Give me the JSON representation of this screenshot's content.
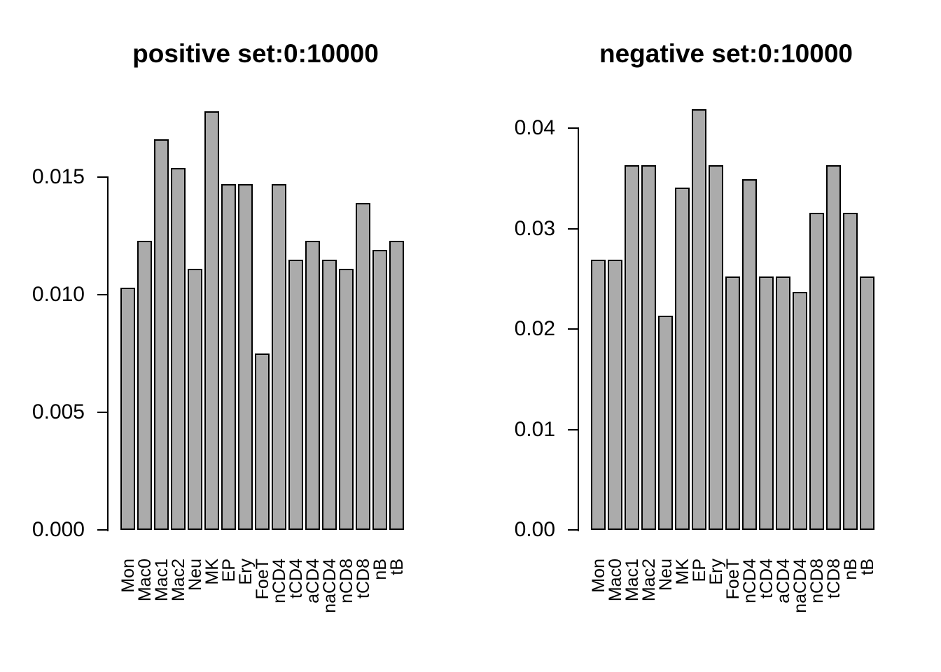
{
  "figure": {
    "background": "#ffffff",
    "bar_fill": "#ababab",
    "bar_border": "#000000",
    "axis_color": "#000000",
    "text_color": "#000000"
  },
  "chart_data": [
    {
      "type": "bar",
      "title": "positive set:0:10000",
      "categories": [
        "Mon",
        "Mac0",
        "Mac1",
        "Mac2",
        "Neu",
        "MK",
        "EP",
        "Ery",
        "FoeT",
        "nCD4",
        "tCD4",
        "aCD4",
        "naCD4",
        "nCD8",
        "tCD8",
        "nB",
        "tB"
      ],
      "values": [
        0.0103,
        0.0123,
        0.0166,
        0.0154,
        0.0111,
        0.0178,
        0.0147,
        0.0147,
        0.0075,
        0.0147,
        0.0115,
        0.0123,
        0.0115,
        0.0111,
        0.0139,
        0.0119,
        0.0123
      ],
      "xlabel": "",
      "ylabel": "",
      "ylim": [
        0,
        0.015
      ],
      "yticks": [
        {
          "value": 0,
          "label": "0.000"
        },
        {
          "value": 0.005,
          "label": "0.005"
        },
        {
          "value": 0.01,
          "label": "0.010"
        },
        {
          "value": 0.015,
          "label": "0.015"
        }
      ],
      "grid": false,
      "legend": "none"
    },
    {
      "type": "bar",
      "title": "negative set:0:10000",
      "categories": [
        "Mon",
        "Mac0",
        "Mac1",
        "Mac2",
        "Neu",
        "MK",
        "EP",
        "Ery",
        "FoeT",
        "nCD4",
        "tCD4",
        "aCD4",
        "naCD4",
        "nCD8",
        "tCD8",
        "nB",
        "tB"
      ],
      "values": [
        0.0269,
        0.0269,
        0.0363,
        0.0363,
        0.0213,
        0.0341,
        0.0419,
        0.0363,
        0.0252,
        0.0349,
        0.0252,
        0.0252,
        0.0237,
        0.0316,
        0.0363,
        0.0316,
        0.0252
      ],
      "xlabel": "",
      "ylabel": "",
      "ylim": [
        0,
        0.04
      ],
      "yticks": [
        {
          "value": 0,
          "label": "0.00"
        },
        {
          "value": 0.01,
          "label": "0.01"
        },
        {
          "value": 0.02,
          "label": "0.02"
        },
        {
          "value": 0.03,
          "label": "0.03"
        },
        {
          "value": 0.04,
          "label": "0.04"
        }
      ],
      "grid": false,
      "legend": "none"
    }
  ]
}
